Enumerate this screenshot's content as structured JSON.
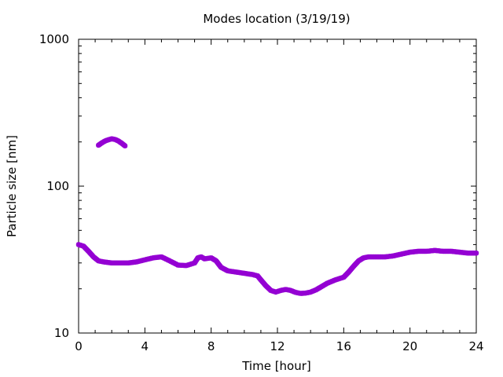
{
  "chart_data": {
    "type": "scatter",
    "title": "Modes location (3/19/19)",
    "xlabel": "Time [hour]",
    "ylabel": "Particle size [nm]",
    "x_ticks": [
      0,
      4,
      8,
      12,
      16,
      20,
      24
    ],
    "y_ticks": [
      10,
      100,
      1000
    ],
    "xlim": [
      0,
      24
    ],
    "ylim": [
      10,
      1000
    ],
    "y_scale": "log",
    "grid": false,
    "legend": "none",
    "marker_color": "#9400d3",
    "series": [
      {
        "values_desc": "main mode",
        "x": [
          0.0,
          0.3,
          0.6,
          0.9,
          1.2,
          1.5,
          2.0,
          2.5,
          3.0,
          3.5,
          4.0,
          4.5,
          5.0,
          5.5,
          6.0,
          6.5,
          7.0,
          7.2,
          7.4,
          7.6,
          8.0,
          8.3,
          8.6,
          9.0,
          9.5,
          10.0,
          10.5,
          10.8,
          11.0,
          11.3,
          11.6,
          11.9,
          12.2,
          12.5,
          12.8,
          13.1,
          13.4,
          13.7,
          14.0,
          14.3,
          14.6,
          15.0,
          15.5,
          16.0,
          16.3,
          16.6,
          16.9,
          17.2,
          17.5,
          18.0,
          18.5,
          19.0,
          19.5,
          20.0,
          20.5,
          21.0,
          21.5,
          22.0,
          22.5,
          23.0,
          23.5,
          24.0
        ],
        "y": [
          40,
          39,
          36,
          33,
          31,
          30.5,
          30,
          30,
          30,
          30.5,
          31.5,
          32.5,
          33,
          31,
          29,
          28.8,
          30,
          32.5,
          33,
          32,
          32.5,
          31,
          28,
          26.5,
          26,
          25.5,
          25,
          24.5,
          23,
          21,
          19.5,
          19,
          19.5,
          19.8,
          19.5,
          18.9,
          18.6,
          18.7,
          19,
          19.6,
          20.5,
          21.8,
          23,
          24,
          26,
          28.5,
          31,
          32.5,
          33,
          33,
          33,
          33.5,
          34.5,
          35.5,
          36,
          36,
          36.5,
          36,
          36,
          35.5,
          35,
          35
        ]
      },
      {
        "values_desc": "upper mode",
        "x": [
          1.2,
          1.4,
          1.6,
          1.8,
          2.0,
          2.2,
          2.4,
          2.6,
          2.8
        ],
        "y": [
          190,
          197,
          203,
          207,
          210,
          208,
          203,
          196,
          188
        ]
      }
    ]
  }
}
